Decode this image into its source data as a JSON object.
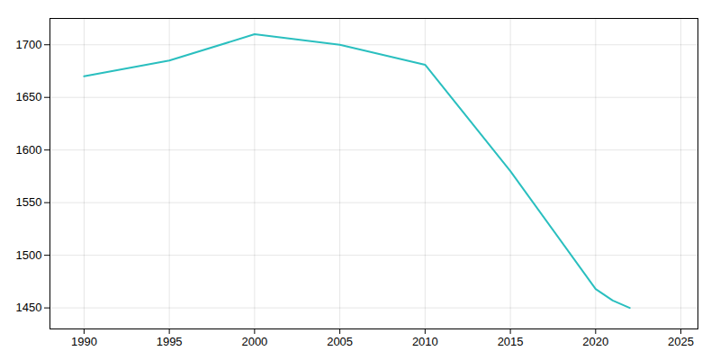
{
  "chart_data": {
    "type": "line",
    "x": [
      1990,
      1995,
      2000,
      2005,
      2010,
      2015,
      2020,
      2021,
      2022
    ],
    "values": [
      1670,
      1685,
      1710,
      1700,
      1681,
      1580,
      1468,
      1457,
      1450
    ],
    "color": "#2abfbf",
    "xlim": [
      1988,
      2026
    ],
    "ylim": [
      1430,
      1725
    ],
    "xticks": [
      1990,
      1995,
      2000,
      2005,
      2010,
      2015,
      2020,
      2025
    ],
    "yticks": [
      1450,
      1500,
      1550,
      1600,
      1650,
      1700
    ],
    "grid": true
  }
}
